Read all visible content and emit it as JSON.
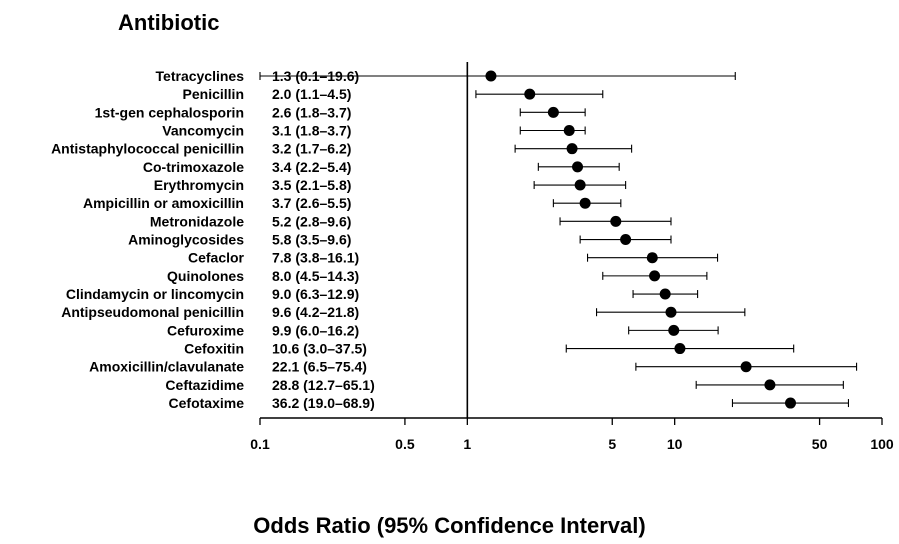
{
  "chart_data": {
    "type": "forest",
    "title": "Antibiotic",
    "xlabel": "Odds Ratio (95% Confidence Interval)",
    "x_scale": "log",
    "xlim": [
      0.1,
      100
    ],
    "x_ticks": [
      {
        "value": 0.1,
        "label": "0.1"
      },
      {
        "value": 0.5,
        "label": "0.5"
      },
      {
        "value": 1,
        "label": "1"
      },
      {
        "value": 5,
        "label": "5"
      },
      {
        "value": 10,
        "label": "10"
      },
      {
        "value": 50,
        "label": "50"
      },
      {
        "value": 100,
        "label": "100"
      }
    ],
    "reference_line": 1,
    "rows": [
      {
        "name": "Tetracyclines",
        "or": 1.3,
        "lo": 0.1,
        "hi": 19.6,
        "text": "1.3 (0.1–19.6)"
      },
      {
        "name": "Penicillin",
        "or": 2.0,
        "lo": 1.1,
        "hi": 4.5,
        "text": "2.0 (1.1–4.5)"
      },
      {
        "name": "1st-gen cephalosporin",
        "or": 2.6,
        "lo": 1.8,
        "hi": 3.7,
        "text": "2.6 (1.8–3.7)"
      },
      {
        "name": "Vancomycin",
        "or": 3.1,
        "lo": 1.8,
        "hi": 3.7,
        "text": "3.1 (1.8–3.7)"
      },
      {
        "name": "Antistaphylococcal penicillin",
        "or": 3.2,
        "lo": 1.7,
        "hi": 6.2,
        "text": "3.2 (1.7–6.2)"
      },
      {
        "name": "Co-trimoxazole",
        "or": 3.4,
        "lo": 2.2,
        "hi": 5.4,
        "text": "3.4 (2.2–5.4)"
      },
      {
        "name": "Erythromycin",
        "or": 3.5,
        "lo": 2.1,
        "hi": 5.8,
        "text": "3.5 (2.1–5.8)"
      },
      {
        "name": "Ampicillin or amoxicillin",
        "or": 3.7,
        "lo": 2.6,
        "hi": 5.5,
        "text": "3.7 (2.6–5.5)"
      },
      {
        "name": "Metronidazole",
        "or": 5.2,
        "lo": 2.8,
        "hi": 9.6,
        "text": "5.2 (2.8–9.6)"
      },
      {
        "name": "Aminoglycosides",
        "or": 5.8,
        "lo": 3.5,
        "hi": 9.6,
        "text": "5.8 (3.5–9.6)"
      },
      {
        "name": "Cefaclor",
        "or": 7.8,
        "lo": 3.8,
        "hi": 16.1,
        "text": "7.8 (3.8–16.1)"
      },
      {
        "name": "Quinolones",
        "or": 8.0,
        "lo": 4.5,
        "hi": 14.3,
        "text": "8.0 (4.5–14.3)"
      },
      {
        "name": "Clindamycin or lincomycin",
        "or": 9.0,
        "lo": 6.3,
        "hi": 12.9,
        "text": "9.0 (6.3–12.9)"
      },
      {
        "name": "Antipseudomonal penicillin",
        "or": 9.6,
        "lo": 4.2,
        "hi": 21.8,
        "text": "9.6 (4.2–21.8)"
      },
      {
        "name": "Cefuroxime",
        "or": 9.9,
        "lo": 6.0,
        "hi": 16.2,
        "text": "9.9 (6.0–16.2)"
      },
      {
        "name": "Cefoxitin",
        "or": 10.6,
        "lo": 3.0,
        "hi": 37.5,
        "text": "10.6 (3.0–37.5)"
      },
      {
        "name": "Amoxicillin/clavulanate",
        "or": 22.1,
        "lo": 6.5,
        "hi": 75.4,
        "text": "22.1 (6.5–75.4)"
      },
      {
        "name": "Ceftazidime",
        "or": 28.8,
        "lo": 12.7,
        "hi": 65.1,
        "text": "28.8 (12.7–65.1)"
      },
      {
        "name": "Cefotaxime",
        "or": 36.2,
        "lo": 19.0,
        "hi": 68.9,
        "text": "36.2 (19.0–68.9)"
      }
    ]
  }
}
